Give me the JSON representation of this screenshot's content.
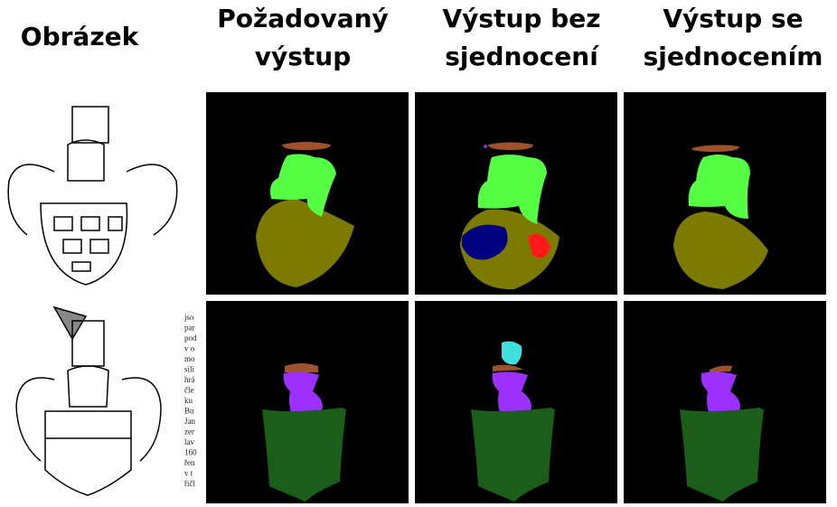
{
  "headers": [
    {
      "lines": [
        "Obrázek"
      ]
    },
    {
      "lines": [
        "Požadovaný",
        "výstup"
      ]
    },
    {
      "lines": [
        "Výstup bez",
        "sjednocení"
      ]
    },
    {
      "lines": [
        "Výstup se",
        "sjednocením"
      ]
    }
  ],
  "side_text": [
    "jso",
    "par",
    "pod",
    "v o",
    "mo",
    "sili",
    "hrá",
    "čle",
    "ku",
    "Bu",
    "Jan",
    "zer",
    "lav",
    "160",
    "řen",
    "v t",
    "řičl"
  ]
}
